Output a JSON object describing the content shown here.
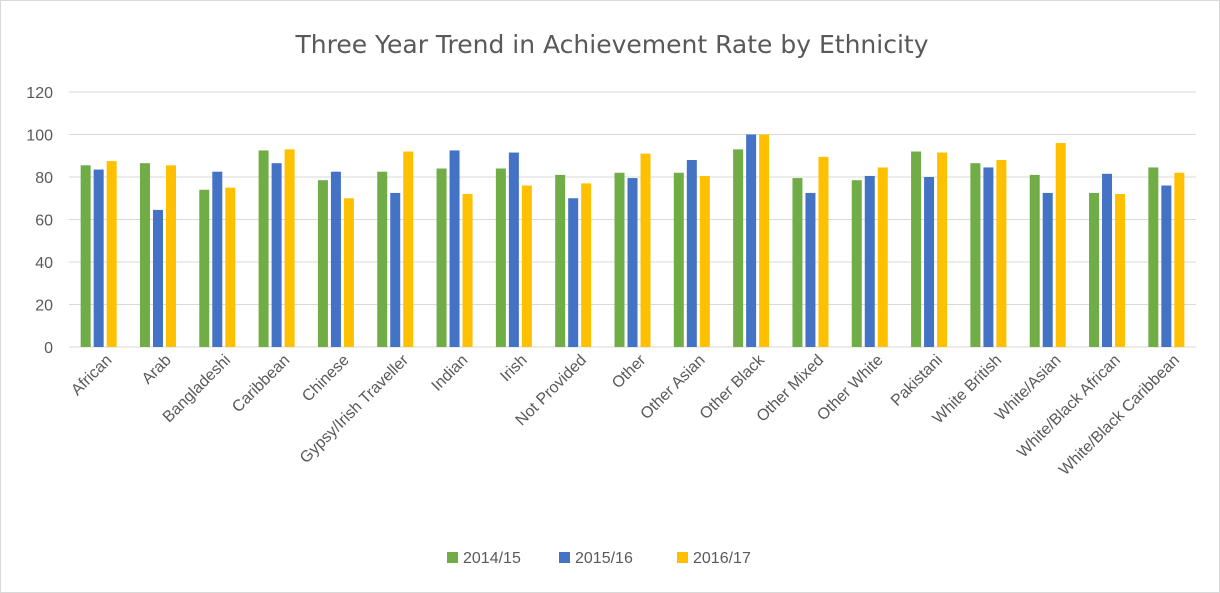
{
  "chart_data": {
    "type": "bar",
    "title": "Three Year Trend in Achievement Rate by Ethnicity",
    "xlabel": "",
    "ylabel": "",
    "ylim": [
      0,
      120
    ],
    "yticks": [
      "0",
      "20",
      "40",
      "60",
      "80",
      "100",
      "120"
    ],
    "grid": true,
    "legend_position": "bottom",
    "categories": [
      "African",
      "Arab",
      "Bangladeshi",
      "Caribbean",
      "Chinese",
      "Gypsy/Irish Traveller",
      "Indian",
      "Irish",
      "Not Provided",
      "Other",
      "Other Asian",
      "Other Black",
      "Other Mixed",
      "Other White",
      "Pakistani",
      "White British",
      "White/Asian",
      "White/Black African",
      "White/Black Caribbean"
    ],
    "series": [
      {
        "name": "2014/15",
        "color": "#70ad47",
        "values": [
          85.5,
          86.5,
          74,
          92.5,
          78.5,
          82.5,
          84,
          84,
          81,
          82,
          82,
          93,
          79.5,
          78.5,
          92,
          86.5,
          81,
          72.5,
          84.5
        ]
      },
      {
        "name": "2015/16",
        "color": "#4472c4",
        "values": [
          83.5,
          64.5,
          82.5,
          86.5,
          82.5,
          72.5,
          92.5,
          91.5,
          70,
          79.5,
          88,
          100,
          72.5,
          80.5,
          80,
          84.5,
          72.5,
          81.5,
          76
        ]
      },
      {
        "name": "2016/17",
        "color": "#ffc000",
        "values": [
          87.5,
          85.5,
          75,
          93,
          70,
          92,
          72,
          76,
          77,
          91,
          80.5,
          100,
          89.5,
          84.5,
          91.5,
          88,
          96,
          72,
          82
        ]
      }
    ]
  }
}
